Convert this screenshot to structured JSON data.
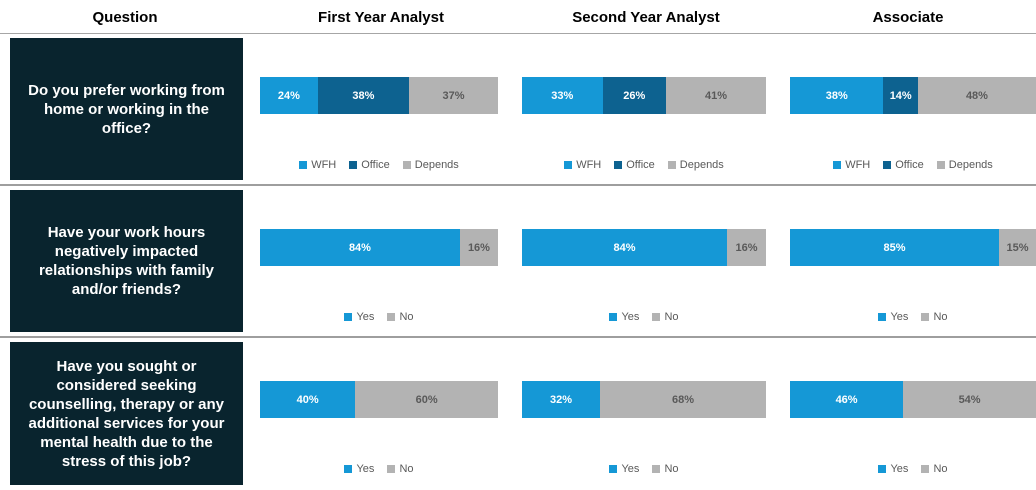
{
  "headers": [
    "Question",
    "First Year Analyst",
    "Second Year Analyst",
    "Associate"
  ],
  "palette": {
    "question_box_bg": "#09242E",
    "question_text": "#FFFFFF",
    "row_divider": "#9E9E9E",
    "header_divider": "#A6A6A6",
    "light_blue": "#1598D6",
    "dark_blue": "#0D6290",
    "gray": "#B3B3B3"
  },
  "chart_data": [
    {
      "type": "bar",
      "stacked": true,
      "orientation": "horizontal",
      "question": "Do you prefer working from home or working in the office?",
      "columns": [
        "First Year Analyst",
        "Second Year Analyst",
        "Associate"
      ],
      "legend": [
        "WFH",
        "Office",
        "Depends"
      ],
      "unit": "%",
      "colors": [
        "#1598D6",
        "#0D6290",
        "#B3B3B3"
      ],
      "label_colors": [
        "#FFFFFF",
        "#FFFFFF",
        "#595959"
      ],
      "values": [
        [
          24,
          38,
          37
        ],
        [
          33,
          26,
          41
        ],
        [
          38,
          14,
          48
        ]
      ]
    },
    {
      "type": "bar",
      "stacked": true,
      "orientation": "horizontal",
      "question": "Have your work hours negatively impacted relationships with family and/or friends?",
      "columns": [
        "First Year Analyst",
        "Second Year Analyst",
        "Associate"
      ],
      "legend": [
        "Yes",
        "No"
      ],
      "unit": "%",
      "colors": [
        "#1598D6",
        "#B3B3B3"
      ],
      "label_colors": [
        "#FFFFFF",
        "#595959"
      ],
      "values": [
        [
          84,
          16
        ],
        [
          84,
          16
        ],
        [
          85,
          15
        ]
      ]
    },
    {
      "type": "bar",
      "stacked": true,
      "orientation": "horizontal",
      "question": "Have you sought or considered seeking counselling, therapy or any additional services for your mental health due to the stress of this job?",
      "columns": [
        "First Year Analyst",
        "Second Year Analyst",
        "Associate"
      ],
      "legend": [
        "Yes",
        "No"
      ],
      "unit": "%",
      "colors": [
        "#1598D6",
        "#B3B3B3"
      ],
      "label_colors": [
        "#FFFFFF",
        "#595959"
      ],
      "values": [
        [
          40,
          60
        ],
        [
          32,
          68
        ],
        [
          46,
          54
        ]
      ]
    }
  ]
}
